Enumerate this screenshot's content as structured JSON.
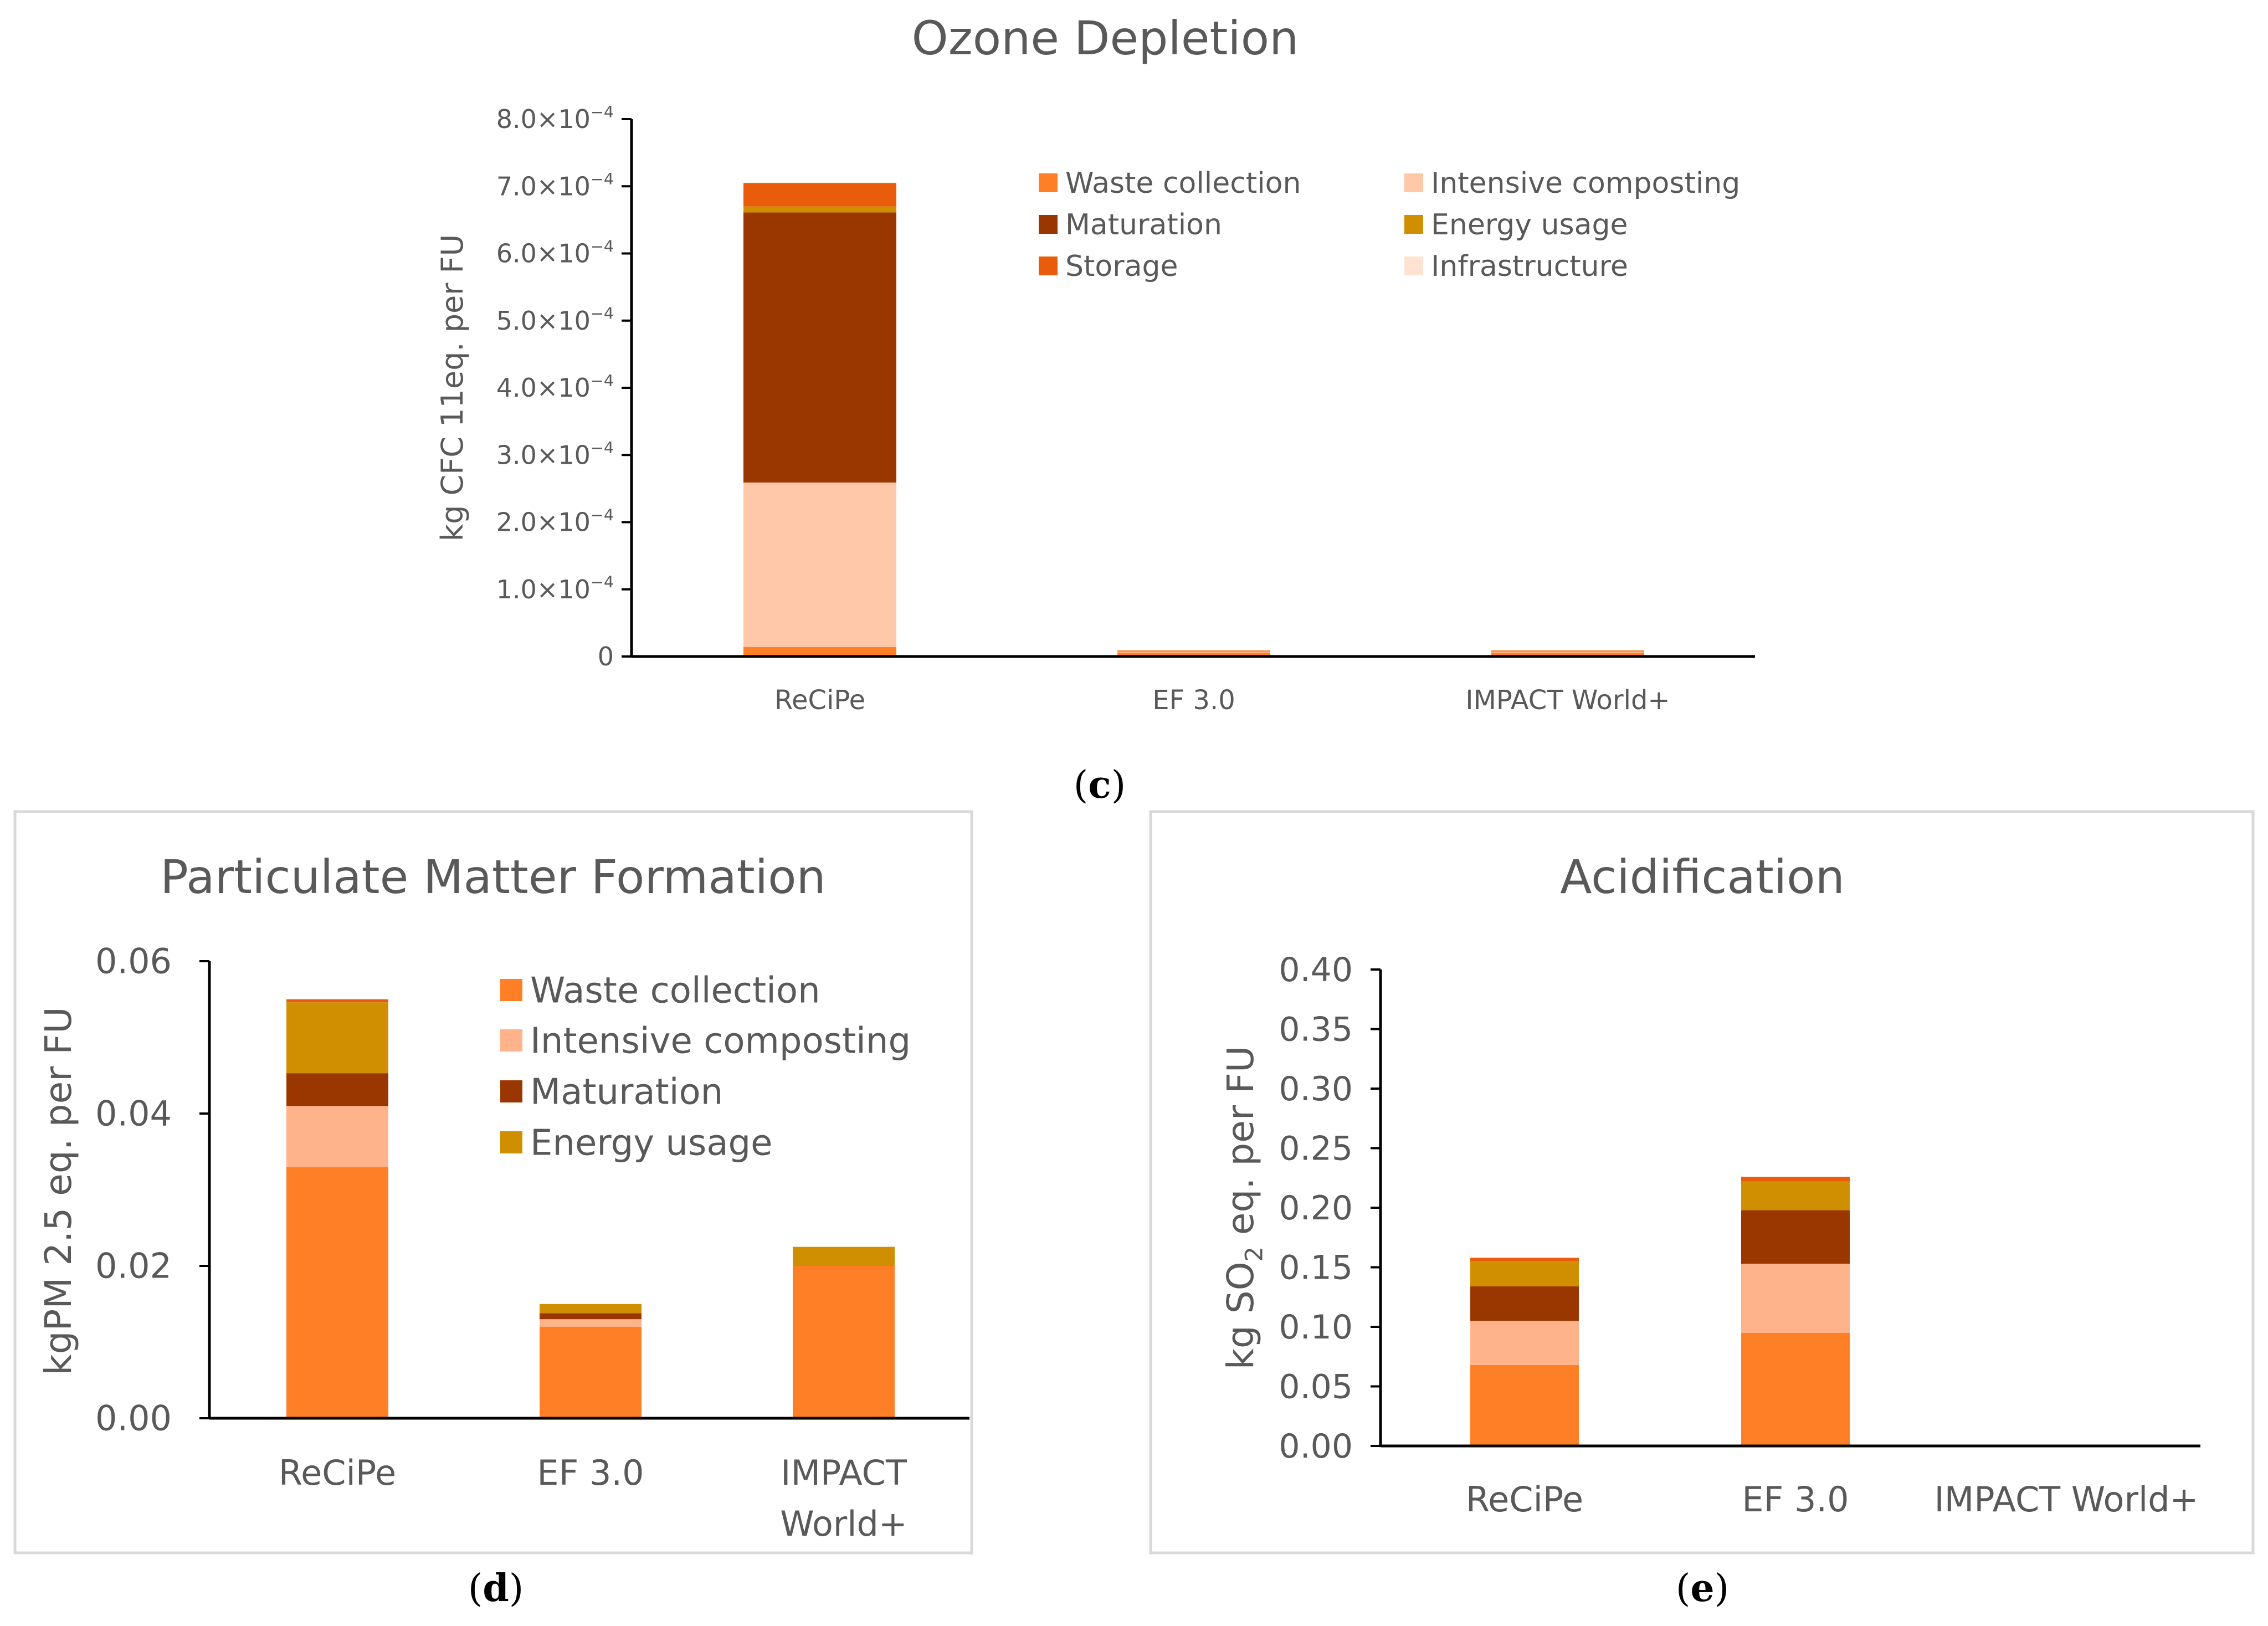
{
  "series_colors": {
    "Waste collection": "#FF7F27",
    "Intensive composting": "#FFC8A8",
    "Intensive composting (d,e)": "#FFB38A",
    "Maturation": "#9A3700",
    "Energy usage": "#CF8F00",
    "Storage": "#E85C0C",
    "Infrastructure": "#FFE2D2"
  },
  "chart_data": [
    {
      "id": "c",
      "type": "bar",
      "stacked": true,
      "title": "Ozone Depletion",
      "ylabel": "kg CFC 11eq. per FU",
      "xlabel": "",
      "caption_letter": "c",
      "categories": [
        "ReCiPe",
        "EF 3.0",
        "IMPACT World+"
      ],
      "ylim": [
        0,
        0.0008
      ],
      "yticks": [
        0,
        0.0001,
        0.0002,
        0.0003,
        0.0004,
        0.0005,
        0.0006,
        0.0007,
        0.0008
      ],
      "ytick_labels": [
        "0",
        "1.0×10",
        "2.0×10",
        "3.0×10",
        "4.0×10",
        "5.0×10",
        "6.0×10",
        "7.0×10",
        "8.0×10"
      ],
      "ytick_exp": "−4",
      "legend": [
        "Waste collection",
        "Maturation",
        "Storage",
        "Intensive composting",
        "Energy usage",
        "Infrastructure"
      ],
      "series": [
        {
          "name": "Waste collection",
          "values": [
            1.4e-05,
            6e-06,
            6e-06
          ]
        },
        {
          "name": "Intensive composting",
          "values": [
            0.000245,
            1.5e-06,
            1.5e-06
          ]
        },
        {
          "name": "Maturation",
          "values": [
            0.000402,
            5e-07,
            5e-07
          ]
        },
        {
          "name": "Energy usage",
          "values": [
            9e-06,
            5e-07,
            5e-07
          ]
        },
        {
          "name": "Storage",
          "values": [
            3.5e-05,
            5e-07,
            5e-07
          ]
        },
        {
          "name": "Infrastructure",
          "values": [
            5e-07,
            0.0,
            0.0
          ]
        }
      ]
    },
    {
      "id": "d",
      "type": "bar",
      "stacked": true,
      "title": "Particulate Matter Formation",
      "ylabel": "kgPM 2.5 eq. per FU",
      "xlabel": "",
      "caption_letter": "d",
      "categories": [
        "ReCiPe",
        "EF 3.0",
        "IMPACT World+"
      ],
      "category_lines": [
        [
          "ReCiPe"
        ],
        [
          "EF 3.0"
        ],
        [
          "IMPACT",
          "World+"
        ]
      ],
      "ylim": [
        0,
        0.06
      ],
      "yticks": [
        0,
        0.02,
        0.04,
        0.06
      ],
      "ytick_labels": [
        "0.00",
        "0.02",
        "0.04",
        "0.06"
      ],
      "legend": [
        "Waste collection",
        "Intensive composting",
        "Maturation",
        "Energy usage"
      ],
      "series": [
        {
          "name": "Waste collection",
          "values": [
            0.033,
            0.012,
            0.02
          ]
        },
        {
          "name": "Intensive composting",
          "values": [
            0.008,
            0.001,
            0.0
          ]
        },
        {
          "name": "Maturation",
          "values": [
            0.0043,
            0.0008,
            0.0
          ]
        },
        {
          "name": "Energy usage",
          "values": [
            0.0093,
            0.0012,
            0.0025
          ]
        },
        {
          "name": "Storage",
          "values": [
            0.0004,
            0.0,
            0.0
          ]
        }
      ]
    },
    {
      "id": "e",
      "type": "bar",
      "stacked": true,
      "title": "Acidification",
      "ylabel": "kg SO",
      "ylabel_sub": "2",
      "ylabel_rest": " eq. per FU",
      "xlabel": "",
      "caption_letter": "e",
      "categories": [
        "ReCiPe",
        "EF 3.0",
        "IMPACT World+"
      ],
      "ylim": [
        0,
        0.4
      ],
      "yticks": [
        0,
        0.05,
        0.1,
        0.15,
        0.2,
        0.25,
        0.3,
        0.35,
        0.4
      ],
      "ytick_labels": [
        "0.00",
        "0.05",
        "0.10",
        "0.15",
        "0.20",
        "0.25",
        "0.30",
        "0.35",
        "0.40"
      ],
      "legend": [],
      "series": [
        {
          "name": "Waste collection",
          "values": [
            0.068,
            0.095,
            0.0
          ]
        },
        {
          "name": "Intensive composting",
          "values": [
            0.037,
            0.058,
            0.0
          ]
        },
        {
          "name": "Maturation",
          "values": [
            0.029,
            0.045,
            0.0
          ]
        },
        {
          "name": "Energy usage",
          "values": [
            0.021,
            0.024,
            0.0
          ]
        },
        {
          "name": "Storage",
          "values": [
            0.003,
            0.004,
            0.0
          ]
        }
      ]
    }
  ]
}
